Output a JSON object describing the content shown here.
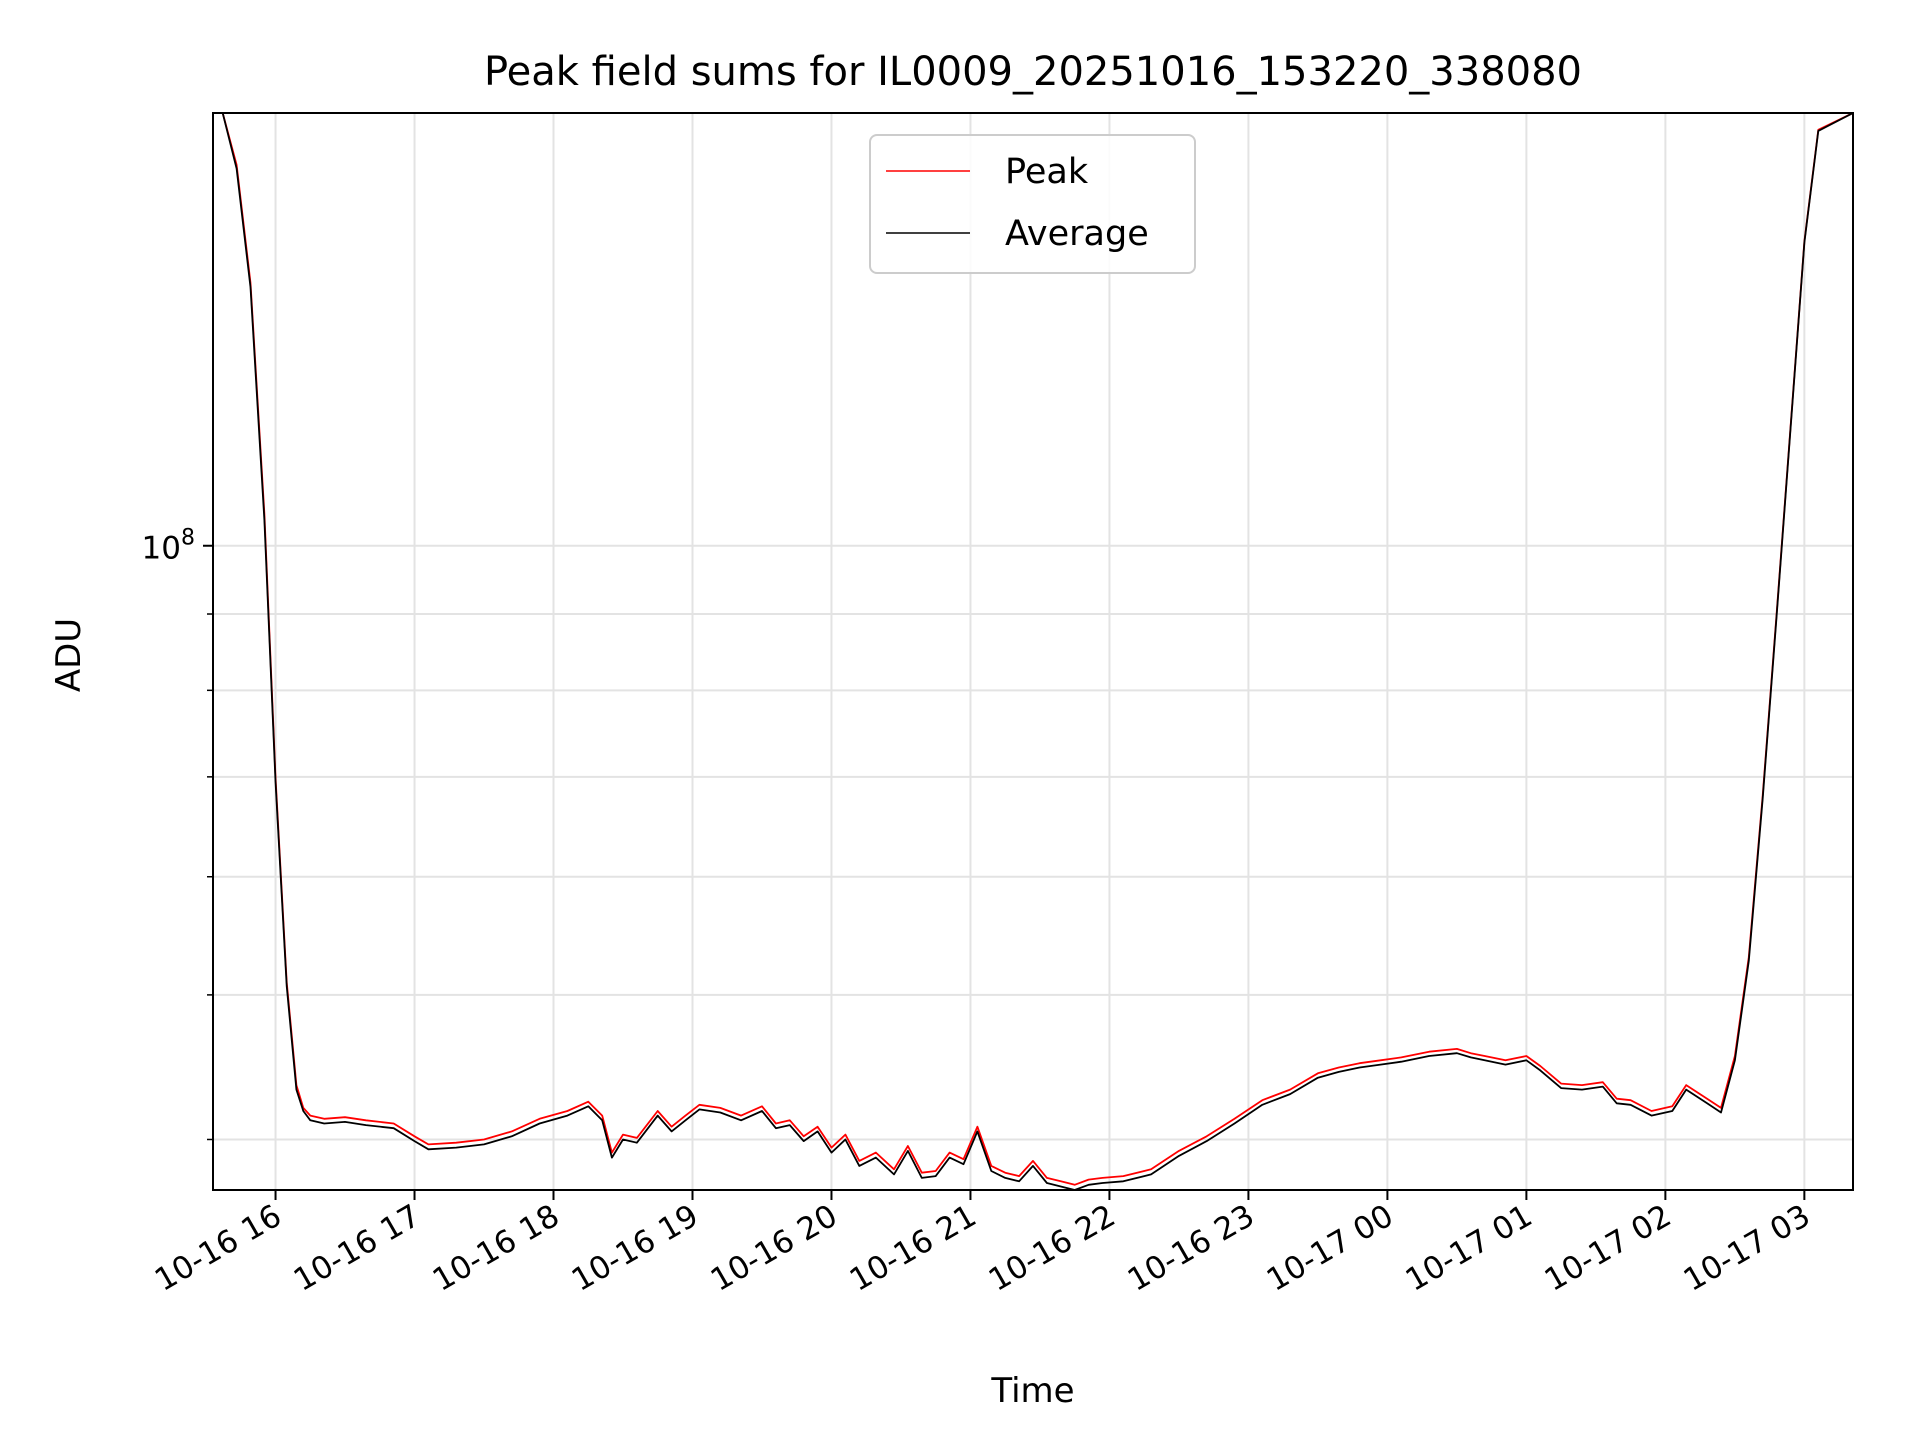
{
  "chart_data": {
    "type": "line",
    "title": "Peak field sums for IL0009_20251016_153220_338080",
    "xlabel": "Time",
    "ylabel": "ADU",
    "yscale": "log",
    "grid": true,
    "legend_position": "top-center",
    "x_unit": "hours since 10-16 00:00",
    "xlim": [
      15.55,
      27.35
    ],
    "ylim": [
      37000000,
      195000000
    ],
    "x_ticks": [
      {
        "value": 16,
        "label": "10-16 16"
      },
      {
        "value": 17,
        "label": "10-16 17"
      },
      {
        "value": 18,
        "label": "10-16 18"
      },
      {
        "value": 19,
        "label": "10-16 19"
      },
      {
        "value": 20,
        "label": "10-16 20"
      },
      {
        "value": 21,
        "label": "10-16 21"
      },
      {
        "value": 22,
        "label": "10-16 22"
      },
      {
        "value": 23,
        "label": "10-16 23"
      },
      {
        "value": 24,
        "label": "10-17 00"
      },
      {
        "value": 25,
        "label": "10-17 01"
      },
      {
        "value": 26,
        "label": "10-17 02"
      },
      {
        "value": 27,
        "label": "10-17 03"
      }
    ],
    "y_major_ticks": [
      {
        "value": 100000000,
        "base": "10",
        "exponent": "8"
      }
    ],
    "y_minor_ticks": [
      40000000,
      50000000,
      60000000,
      70000000,
      80000000,
      90000000,
      200000000
    ],
    "series": [
      {
        "name": "Peak",
        "color": "#ff0000",
        "x": [
          15.55,
          15.62,
          15.72,
          15.82,
          15.92,
          16.0,
          16.08,
          16.15,
          16.2,
          16.25,
          16.35,
          16.5,
          16.65,
          16.85,
          17.0,
          17.1,
          17.3,
          17.5,
          17.7,
          17.9,
          18.1,
          18.25,
          18.35,
          18.42,
          18.5,
          18.6,
          18.75,
          18.85,
          18.95,
          19.05,
          19.2,
          19.35,
          19.5,
          19.6,
          19.7,
          19.8,
          19.9,
          20.0,
          20.1,
          20.2,
          20.32,
          20.45,
          20.55,
          20.65,
          20.75,
          20.85,
          20.95,
          21.05,
          21.15,
          21.25,
          21.35,
          21.45,
          21.55,
          21.65,
          21.75,
          21.85,
          21.95,
          22.1,
          22.3,
          22.5,
          22.7,
          22.9,
          23.1,
          23.3,
          23.5,
          23.65,
          23.8,
          23.95,
          24.1,
          24.3,
          24.5,
          24.6,
          24.7,
          24.85,
          25.0,
          25.1,
          25.25,
          25.4,
          25.55,
          25.65,
          25.75,
          25.9,
          26.05,
          26.15,
          26.3,
          26.4,
          26.5,
          26.6,
          26.7,
          26.8,
          26.9,
          27.0,
          27.1,
          27.35
        ],
        "values": [
          195000000,
          195000000,
          180000000,
          150000000,
          105000000,
          70000000,
          51000000,
          43500000,
          42000000,
          41500000,
          41300000,
          41400000,
          41200000,
          41000000,
          40200000,
          39700000,
          39800000,
          40000000,
          40500000,
          41300000,
          41800000,
          42400000,
          41500000,
          39200000,
          40300000,
          40100000,
          41800000,
          40800000,
          41500000,
          42200000,
          42000000,
          41500000,
          42100000,
          41000000,
          41200000,
          40200000,
          40800000,
          39500000,
          40300000,
          38700000,
          39200000,
          38200000,
          39600000,
          38000000,
          38100000,
          39200000,
          38800000,
          40800000,
          38400000,
          38000000,
          37800000,
          38700000,
          37700000,
          37500000,
          37300000,
          37600000,
          37700000,
          37800000,
          38200000,
          39300000,
          40200000,
          41300000,
          42500000,
          43200000,
          44300000,
          44700000,
          45000000,
          45200000,
          45400000,
          45800000,
          46000000,
          45700000,
          45500000,
          45200000,
          45500000,
          44800000,
          43600000,
          43500000,
          43700000,
          42600000,
          42500000,
          41800000,
          42100000,
          43500000,
          42600000,
          42000000,
          45500000,
          53000000,
          68000000,
          90000000,
          120000000,
          160000000,
          190000000,
          195000000
        ]
      },
      {
        "name": "Average",
        "color": "#000000",
        "x": [
          15.55,
          15.62,
          15.72,
          15.82,
          15.92,
          16.0,
          16.08,
          16.15,
          16.2,
          16.25,
          16.35,
          16.5,
          16.65,
          16.85,
          17.0,
          17.1,
          17.3,
          17.5,
          17.7,
          17.9,
          18.1,
          18.25,
          18.35,
          18.42,
          18.5,
          18.6,
          18.75,
          18.85,
          18.95,
          19.05,
          19.2,
          19.35,
          19.5,
          19.6,
          19.7,
          19.8,
          19.9,
          20.0,
          20.1,
          20.2,
          20.32,
          20.45,
          20.55,
          20.65,
          20.75,
          20.85,
          20.95,
          21.05,
          21.15,
          21.25,
          21.35,
          21.45,
          21.55,
          21.65,
          21.75,
          21.85,
          21.95,
          22.1,
          22.3,
          22.5,
          22.7,
          22.9,
          23.1,
          23.3,
          23.5,
          23.65,
          23.8,
          23.95,
          24.1,
          24.3,
          24.5,
          24.6,
          24.7,
          24.85,
          25.0,
          25.1,
          25.25,
          25.4,
          25.55,
          25.65,
          25.75,
          25.9,
          26.05,
          26.15,
          26.3,
          26.4,
          26.5,
          26.6,
          26.7,
          26.8,
          26.9,
          27.0,
          27.1,
          27.35
        ],
        "values": [
          195000000,
          195000000,
          179000000,
          149000000,
          104000000,
          69500000,
          50700000,
          43200000,
          41800000,
          41200000,
          41000000,
          41100000,
          40900000,
          40700000,
          39900000,
          39400000,
          39500000,
          39700000,
          40200000,
          41000000,
          41500000,
          42100000,
          41200000,
          38900000,
          40000000,
          39800000,
          41500000,
          40500000,
          41200000,
          41900000,
          41700000,
          41200000,
          41800000,
          40700000,
          40900000,
          39900000,
          40500000,
          39200000,
          40000000,
          38400000,
          38900000,
          37900000,
          39300000,
          37700000,
          37800000,
          38900000,
          38500000,
          40500000,
          38100000,
          37700000,
          37500000,
          38400000,
          37400000,
          37200000,
          37000000,
          37300000,
          37400000,
          37500000,
          37900000,
          39000000,
          39900000,
          41000000,
          42200000,
          42900000,
          44000000,
          44400000,
          44700000,
          44900000,
          45100000,
          45500000,
          45700000,
          45400000,
          45200000,
          44900000,
          45200000,
          44500000,
          43300000,
          43200000,
          43400000,
          42300000,
          42200000,
          41500000,
          41800000,
          43200000,
          42300000,
          41700000,
          45200000,
          52700000,
          67700000,
          89700000,
          119700000,
          159700000,
          189700000,
          195000000
        ]
      }
    ]
  }
}
